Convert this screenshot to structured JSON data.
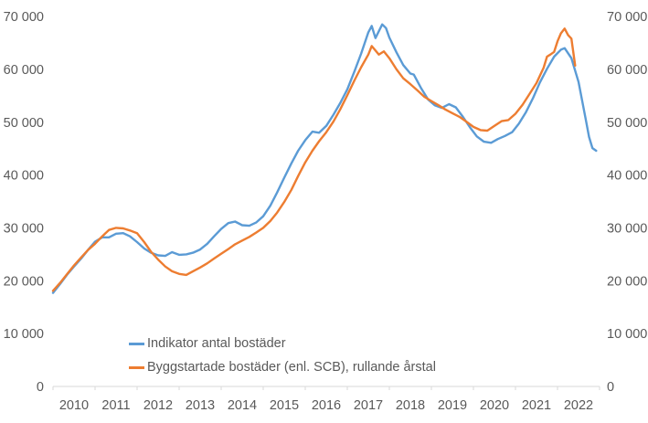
{
  "chart_data": {
    "type": "line",
    "title": "",
    "xlabel": "",
    "ylabel": "",
    "x_min": 2010,
    "x_max": 2023,
    "ylim": [
      0,
      70000
    ],
    "grid": false,
    "legend_position": "inside-bottom-left",
    "axis_color": "#d9d9d9",
    "text_color": "#595959",
    "background_color": "#ffffff",
    "yticks": [
      0,
      10000,
      20000,
      30000,
      40000,
      50000,
      60000,
      70000
    ],
    "ytick_labels": [
      "0",
      "10 000",
      "20 000",
      "30 000",
      "40 000",
      "50 000",
      "60 000",
      "70 000"
    ],
    "ytick_sides": [
      "left",
      "right"
    ],
    "x_tick_positions": [
      2010,
      2011,
      2012,
      2013,
      2014,
      2015,
      2016,
      2017,
      2018,
      2019,
      2020,
      2021,
      2022,
      2023
    ],
    "x_category_labels": [
      "2010",
      "2011",
      "2012",
      "2013",
      "2014",
      "2015",
      "2016",
      "2017",
      "2018",
      "2019",
      "2020",
      "2021",
      "2022"
    ],
    "series": [
      {
        "name": "Indikator antal bostäder",
        "color": "#5B9BD5",
        "points": [
          [
            2010.0,
            17700
          ],
          [
            2010.17,
            19400
          ],
          [
            2010.33,
            21100
          ],
          [
            2010.5,
            22700
          ],
          [
            2010.67,
            24200
          ],
          [
            2010.83,
            25800
          ],
          [
            2011.0,
            27400
          ],
          [
            2011.17,
            28200
          ],
          [
            2011.33,
            28200
          ],
          [
            2011.5,
            28900
          ],
          [
            2011.67,
            29000
          ],
          [
            2011.83,
            28400
          ],
          [
            2012.0,
            27300
          ],
          [
            2012.17,
            26100
          ],
          [
            2012.33,
            25300
          ],
          [
            2012.5,
            24800
          ],
          [
            2012.67,
            24700
          ],
          [
            2012.83,
            25400
          ],
          [
            2013.0,
            24900
          ],
          [
            2013.17,
            25000
          ],
          [
            2013.33,
            25300
          ],
          [
            2013.5,
            25900
          ],
          [
            2013.67,
            27000
          ],
          [
            2013.83,
            28400
          ],
          [
            2014.0,
            29800
          ],
          [
            2014.17,
            30900
          ],
          [
            2014.33,
            31200
          ],
          [
            2014.5,
            30500
          ],
          [
            2014.67,
            30400
          ],
          [
            2014.83,
            31000
          ],
          [
            2015.0,
            32200
          ],
          [
            2015.17,
            34200
          ],
          [
            2015.33,
            36700
          ],
          [
            2015.5,
            39500
          ],
          [
            2015.67,
            42200
          ],
          [
            2015.83,
            44600
          ],
          [
            2016.0,
            46600
          ],
          [
            2016.17,
            48200
          ],
          [
            2016.33,
            48000
          ],
          [
            2016.5,
            49300
          ],
          [
            2016.67,
            51400
          ],
          [
            2016.83,
            53600
          ],
          [
            2017.0,
            56200
          ],
          [
            2017.17,
            59600
          ],
          [
            2017.33,
            63000
          ],
          [
            2017.5,
            67000
          ],
          [
            2017.58,
            68200
          ],
          [
            2017.67,
            65900
          ],
          [
            2017.83,
            68500
          ],
          [
            2017.92,
            67800
          ],
          [
            2018.0,
            66000
          ],
          [
            2018.17,
            63200
          ],
          [
            2018.33,
            60800
          ],
          [
            2018.5,
            59200
          ],
          [
            2018.58,
            59000
          ],
          [
            2018.75,
            56500
          ],
          [
            2018.92,
            54300
          ],
          [
            2019.08,
            53200
          ],
          [
            2019.25,
            52700
          ],
          [
            2019.42,
            53400
          ],
          [
            2019.58,
            52800
          ],
          [
            2019.75,
            51000
          ],
          [
            2019.92,
            49000
          ],
          [
            2020.08,
            47300
          ],
          [
            2020.25,
            46300
          ],
          [
            2020.42,
            46100
          ],
          [
            2020.58,
            46800
          ],
          [
            2020.75,
            47400
          ],
          [
            2020.92,
            48100
          ],
          [
            2021.08,
            49700
          ],
          [
            2021.25,
            51900
          ],
          [
            2021.42,
            54600
          ],
          [
            2021.58,
            57500
          ],
          [
            2021.75,
            60100
          ],
          [
            2021.92,
            62400
          ],
          [
            2022.08,
            63700
          ],
          [
            2022.17,
            64000
          ],
          [
            2022.33,
            62100
          ],
          [
            2022.5,
            57600
          ],
          [
            2022.67,
            50600
          ],
          [
            2022.75,
            47200
          ],
          [
            2022.83,
            45100
          ],
          [
            2022.92,
            44600
          ]
        ]
      },
      {
        "name": "Byggstartade bostäder (enl. SCB), rullande årstal",
        "color": "#ED7D31",
        "points": [
          [
            2010.0,
            18100
          ],
          [
            2010.17,
            19600
          ],
          [
            2010.33,
            21200
          ],
          [
            2010.5,
            22900
          ],
          [
            2010.67,
            24400
          ],
          [
            2010.83,
            25800
          ],
          [
            2011.0,
            27000
          ],
          [
            2011.17,
            28400
          ],
          [
            2011.33,
            29600
          ],
          [
            2011.5,
            30000
          ],
          [
            2011.67,
            29900
          ],
          [
            2011.83,
            29500
          ],
          [
            2012.0,
            29000
          ],
          [
            2012.17,
            27300
          ],
          [
            2012.33,
            25500
          ],
          [
            2012.5,
            24000
          ],
          [
            2012.67,
            22700
          ],
          [
            2012.83,
            21800
          ],
          [
            2013.0,
            21300
          ],
          [
            2013.17,
            21100
          ],
          [
            2013.33,
            21800
          ],
          [
            2013.5,
            22500
          ],
          [
            2013.67,
            23300
          ],
          [
            2013.83,
            24200
          ],
          [
            2014.0,
            25100
          ],
          [
            2014.17,
            26000
          ],
          [
            2014.33,
            26900
          ],
          [
            2014.5,
            27600
          ],
          [
            2014.67,
            28300
          ],
          [
            2014.83,
            29100
          ],
          [
            2015.0,
            30000
          ],
          [
            2015.17,
            31300
          ],
          [
            2015.33,
            32900
          ],
          [
            2015.5,
            34900
          ],
          [
            2015.67,
            37200
          ],
          [
            2015.83,
            39800
          ],
          [
            2016.0,
            42400
          ],
          [
            2016.17,
            44600
          ],
          [
            2016.33,
            46400
          ],
          [
            2016.5,
            48100
          ],
          [
            2016.67,
            50100
          ],
          [
            2016.83,
            52400
          ],
          [
            2017.0,
            55100
          ],
          [
            2017.17,
            57900
          ],
          [
            2017.33,
            60400
          ],
          [
            2017.5,
            62800
          ],
          [
            2017.58,
            64400
          ],
          [
            2017.75,
            62800
          ],
          [
            2017.87,
            63400
          ],
          [
            2018.0,
            62100
          ],
          [
            2018.17,
            60000
          ],
          [
            2018.33,
            58300
          ],
          [
            2018.5,
            57200
          ],
          [
            2018.67,
            56000
          ],
          [
            2018.83,
            54800
          ],
          [
            2019.0,
            54000
          ],
          [
            2019.17,
            53200
          ],
          [
            2019.33,
            52400
          ],
          [
            2019.5,
            51700
          ],
          [
            2019.67,
            51000
          ],
          [
            2019.83,
            50100
          ],
          [
            2020.0,
            49100
          ],
          [
            2020.17,
            48500
          ],
          [
            2020.33,
            48400
          ],
          [
            2020.5,
            49300
          ],
          [
            2020.67,
            50200
          ],
          [
            2020.83,
            50400
          ],
          [
            2021.0,
            51600
          ],
          [
            2021.17,
            53300
          ],
          [
            2021.33,
            55300
          ],
          [
            2021.5,
            57400
          ],
          [
            2021.67,
            60300
          ],
          [
            2021.75,
            62400
          ],
          [
            2021.83,
            62800
          ],
          [
            2021.92,
            63300
          ],
          [
            2022.0,
            65300
          ],
          [
            2022.08,
            66800
          ],
          [
            2022.17,
            67700
          ],
          [
            2022.25,
            66500
          ],
          [
            2022.33,
            65800
          ],
          [
            2022.42,
            60700
          ]
        ]
      }
    ]
  },
  "legend": {
    "items": [
      {
        "label": "Indikator antal bostäder",
        "color": "#5B9BD5"
      },
      {
        "label": "Byggstartade bostäder (enl. SCB), rullande årstal",
        "color": "#ED7D31"
      }
    ]
  }
}
